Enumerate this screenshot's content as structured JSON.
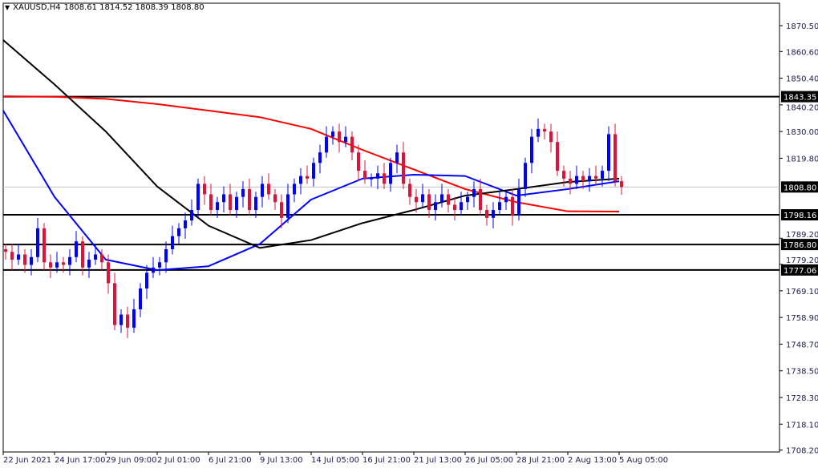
{
  "header": {
    "symbol": "XAUUSD,H4",
    "ohlc": "1808.61 1814.52 1808.39 1808.80",
    "menu_icon": "triangle-down-icon"
  },
  "colors": {
    "bull": "#0000ff",
    "bear": "#dc143c",
    "ma_red": "#ff0000",
    "ma_blue": "#0000ff",
    "ma_black": "#000000",
    "bid_line": "#c0c0c0",
    "axis_text": "#1a1a50"
  },
  "chart_data": {
    "type": "candlestick",
    "title": "XAUUSD,H4",
    "ylim": [
      1705.5,
      1871.5
    ],
    "grid": false,
    "y_ticks": [
      "1870.50",
      "1860.60",
      "1850.40",
      "1840.20",
      "1830.00",
      "1819.80",
      "1789.20",
      "1779.20",
      "1769.10",
      "1758.90",
      "1748.70",
      "1738.50",
      "1728.30",
      "1718.10",
      "1708.20"
    ],
    "x_labels": [
      {
        "index": 0,
        "label": "22 Jun 2021"
      },
      {
        "index": 8,
        "label": "24 Jun 17:00"
      },
      {
        "index": 16,
        "label": "29 Jun 09:00"
      },
      {
        "index": 24,
        "label": "2 Jul 01:00"
      },
      {
        "index": 32,
        "label": "6 Jul 21:00"
      },
      {
        "index": 40,
        "label": "9 Jul 13:00"
      },
      {
        "index": 48,
        "label": "14 Jul 05:00"
      },
      {
        "index": 56,
        "label": "16 Jul 21:00"
      },
      {
        "index": 64,
        "label": "21 Jul 13:00"
      },
      {
        "index": 72,
        "label": "26 Jul 05:00"
      },
      {
        "index": 80,
        "label": "28 Jul 21:00"
      },
      {
        "index": 88,
        "label": "2 Aug 13:00"
      },
      {
        "index": 96,
        "label": "5 Aug 05:00"
      }
    ],
    "close": [
      1784,
      1781,
      1783,
      1779,
      1782,
      1793,
      1780,
      1778,
      1780,
      1779,
      1782,
      1788,
      1778,
      1781,
      1783,
      1780,
      1772,
      1756,
      1760,
      1755,
      1762,
      1770,
      1776,
      1778,
      1780,
      1785,
      1790,
      1793,
      1796,
      1800,
      1810,
      1806,
      1800,
      1803,
      1806,
      1800,
      1805,
      1808,
      1800,
      1805,
      1810,
      1806,
      1803,
      1797,
      1806,
      1810,
      1813,
      1812,
      1818,
      1822,
      1828,
      1830,
      1826,
      1828,
      1822,
      1815,
      1812,
      1812,
      1814,
      1810,
      1818,
      1822,
      1810,
      1805,
      1803,
      1806,
      1800,
      1803,
      1806,
      1802,
      1800,
      1803,
      1805,
      1808,
      1800,
      1797,
      1800,
      1803,
      1805,
      1798,
      1808,
      1818,
      1828,
      1831,
      1830,
      1826,
      1815,
      1812,
      1810,
      1813,
      1811,
      1813,
      1812,
      1815,
      1829,
      1811,
      1808.8
    ],
    "moving_averages": [
      {
        "color": "#ff0000",
        "anchor_step": 8,
        "values": [
          1843.5,
          1843.3,
          1842.5,
          1840.5,
          1838,
          1835.5,
          1831,
          1823,
          1815.5,
          1808,
          1803,
          1799.5,
          1799.4
        ]
      },
      {
        "color": "#0000ff",
        "anchor_step": 8,
        "values": [
          1838,
          1805,
          1781,
          1777,
          1778.5,
          1787,
          1804,
          1812,
          1813.5,
          1813,
          1805.5,
          1808,
          1811
        ]
      },
      {
        "color": "#000000",
        "anchor_step": 8,
        "values": [
          1865,
          1848,
          1830,
          1809,
          1794,
          1785.5,
          1788.5,
          1795,
          1800,
          1805.5,
          1808,
          1810.7,
          1812
        ]
      }
    ],
    "horizontal_levels": [
      "1843.35",
      "1798.16",
      "1786.80",
      "1777.06"
    ],
    "bid": "1808.80"
  }
}
